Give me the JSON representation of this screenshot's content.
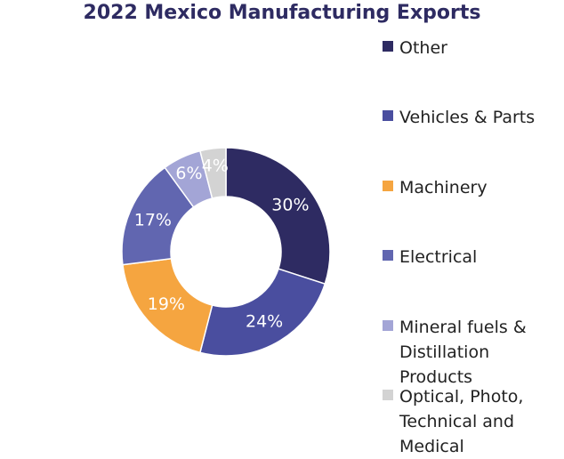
{
  "chart_data": {
    "type": "pie",
    "title": "2022 Mexico Manufacturing Exports",
    "categories": [
      "Other",
      "Vehicles & Parts",
      "Machinery",
      "Electrical",
      "Mineral fuels & Distillation Products",
      "Optical, Photo, Technical and Medical"
    ],
    "values": [
      30,
      24,
      19,
      17,
      6,
      4
    ],
    "data_labels": [
      "30%",
      "24%",
      "19%",
      "17%",
      "6%",
      "4%"
    ],
    "colors": [
      "#2e2b62",
      "#4a4e9f",
      "#f5a540",
      "#6166b0",
      "#a3a5d6",
      "#d3d3d3"
    ],
    "label_colors": [
      "#ffffff",
      "#ffffff",
      "#ffffff",
      "#ffffff",
      "#ffffff",
      "#ffffff"
    ],
    "donut": true,
    "legend_position": "right"
  }
}
